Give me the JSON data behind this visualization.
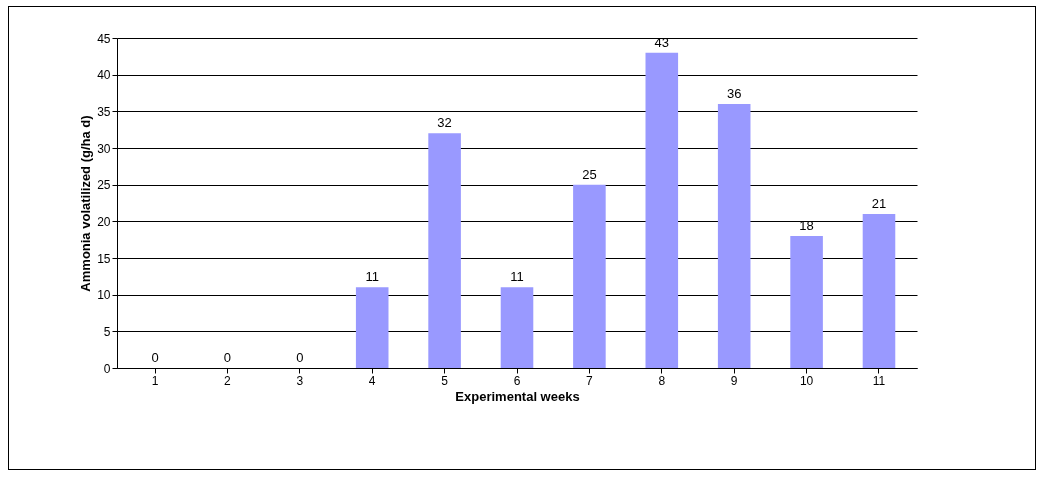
{
  "chart_data": {
    "type": "bar",
    "xlabel": "Experimental weeks",
    "ylabel": "Ammonia volatilized (g/ha d)",
    "categories": [
      "1",
      "2",
      "3",
      "4",
      "5",
      "6",
      "7",
      "8",
      "9",
      "10",
      "11"
    ],
    "values": [
      0,
      0,
      0,
      11,
      32,
      11,
      25,
      43,
      36,
      18,
      21
    ],
    "color": "#9999ff",
    "ylim": [
      0,
      45
    ],
    "yticks": [
      0,
      5,
      10,
      15,
      20,
      25,
      30,
      35,
      40,
      45
    ],
    "grid": "y",
    "data_labels": true
  }
}
